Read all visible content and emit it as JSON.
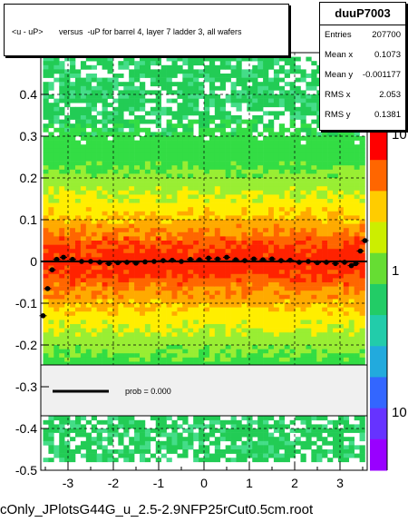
{
  "title": "<u - uP>       versus  -uP for barrel 4, layer 7 ladder 3, all wafers",
  "stats": {
    "name": "duuP7003",
    "rows": [
      {
        "key": "Entries",
        "value": "207700"
      },
      {
        "key": "Mean x",
        "value": "0.1073"
      },
      {
        "key": "Mean y",
        "value": "-0.001177"
      },
      {
        "key": "RMS x",
        "value": "2.053"
      },
      {
        "key": "RMS y",
        "value": "0.1381"
      }
    ]
  },
  "legend": {
    "label": "prob = 0.000"
  },
  "footer": "cOnly_JPlotsG44G_u_2.5-2.9NFP25rCut0.5cm.root",
  "colors": {
    "profile": "#000000",
    "band_core": "#ff3300",
    "band_mid": "#ffcc00",
    "band_outer": "#33cc33"
  },
  "chart_data": {
    "type": "heatmap",
    "xlim": [
      -3.6,
      3.6
    ],
    "ylim": [
      -0.5,
      0.5
    ],
    "xticks": [
      -3,
      -2,
      -1,
      0,
      1,
      2,
      3
    ],
    "yticks": [
      0.4,
      0.3,
      0.2,
      0.1,
      0,
      -0.1,
      -0.2,
      -0.3,
      -0.4,
      -0.5
    ],
    "ytick_labels": [
      "0.4",
      "0.3",
      "0.2",
      "0.1",
      "0",
      "-0.1",
      "-0.2",
      "-0.3",
      "-0.4",
      "-0.5"
    ],
    "colorbar": {
      "scale": "log",
      "labels": [
        "10",
        "1",
        "10"
      ]
    },
    "profile": {
      "x": [
        -3.55,
        -3.45,
        -3.35,
        -3.25,
        -3.1,
        -2.9,
        -2.7,
        -2.5,
        -2.3,
        -2.1,
        -1.9,
        -1.7,
        -1.5,
        -1.3,
        -1.1,
        -0.9,
        -0.7,
        -0.5,
        -0.3,
        -0.1,
        0.1,
        0.3,
        0.5,
        0.7,
        0.9,
        1.1,
        1.3,
        1.5,
        1.7,
        1.9,
        2.1,
        2.3,
        2.5,
        2.7,
        2.9,
        3.1,
        3.25,
        3.35,
        3.45,
        3.55
      ],
      "y": [
        -0.13,
        -0.065,
        -0.02,
        0.005,
        0.01,
        0.005,
        0.0,
        0.0,
        -0.002,
        -0.005,
        -0.003,
        -0.002,
        -0.004,
        -0.001,
        0.0,
        0.002,
        0.003,
        0.0,
        0.005,
        0.004,
        0.008,
        0.006,
        0.01,
        0.004,
        0.002,
        0.006,
        0.004,
        0.006,
        0.002,
        0.003,
        -0.002,
        0.0,
        -0.003,
        -0.002,
        -0.005,
        -0.002,
        -0.01,
        -0.005,
        0.025,
        0.05
      ]
    },
    "fit_y": 0.0,
    "title": "<u - uP>       versus  -uP for barrel 4, layer 7 ladder 3, all wafers"
  }
}
